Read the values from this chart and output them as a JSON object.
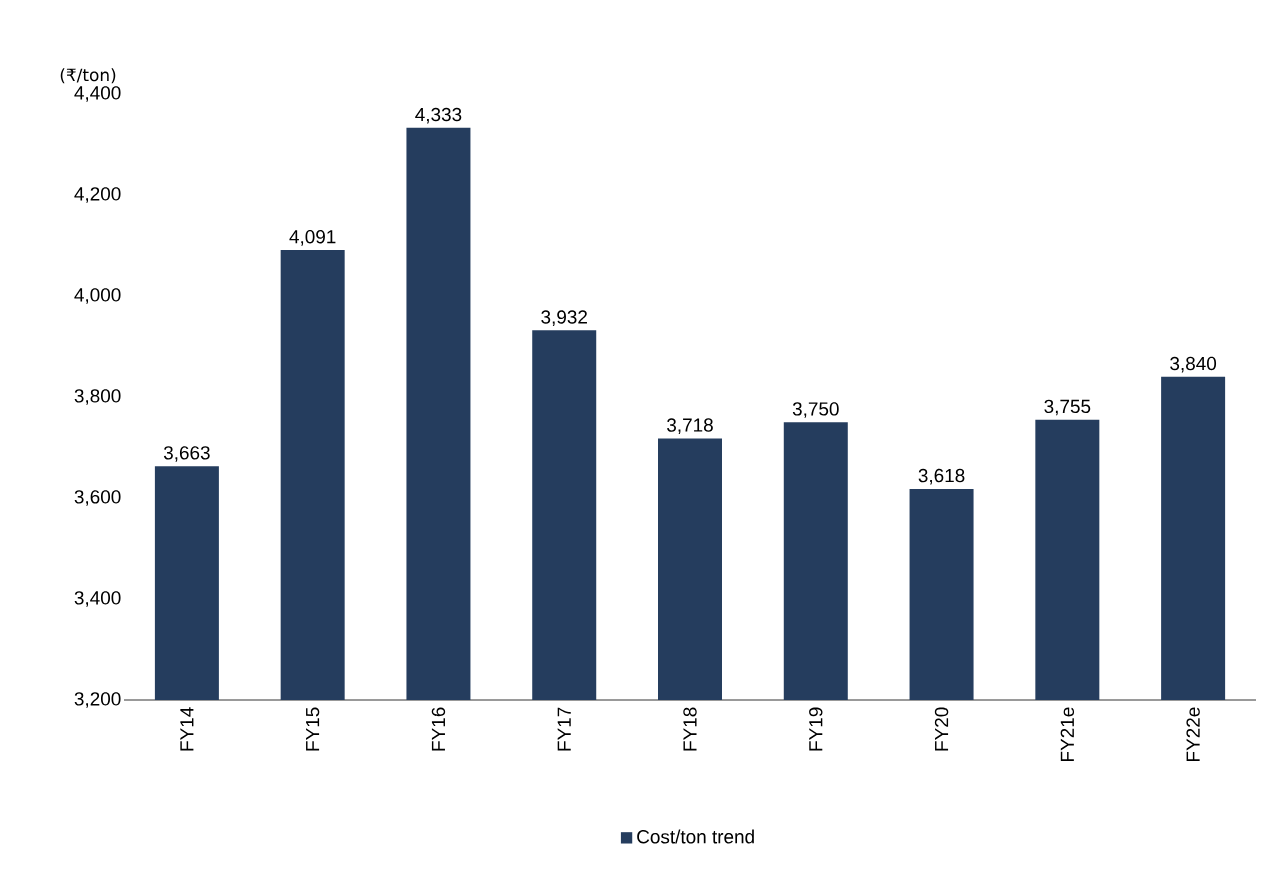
{
  "chart_data": {
    "type": "bar",
    "ylabel": "(₹/ton)",
    "categories": [
      "FY14",
      "FY15",
      "FY16",
      "FY17",
      "FY18",
      "FY19",
      "FY20",
      "FY21e",
      "FY22e"
    ],
    "series": [
      {
        "name": "Cost/ton trend",
        "color": "#253d5e",
        "values": [
          3663,
          4091,
          4333,
          3932,
          3718,
          3750,
          3618,
          3755,
          3840
        ],
        "value_labels": [
          "3,663",
          "4,091",
          "4,333",
          "3,932",
          "3,718",
          "3,750",
          "3,618",
          "3,755",
          "3,840"
        ]
      }
    ],
    "ylim": [
      3200,
      4400
    ],
    "yticks": [
      {
        "value": 3200,
        "label": "3,200"
      },
      {
        "value": 3400,
        "label": "3,400"
      },
      {
        "value": 3600,
        "label": "3,600"
      },
      {
        "value": 3800,
        "label": "3,800"
      },
      {
        "value": 4000,
        "label": "4,000"
      },
      {
        "value": 4200,
        "label": "4,200"
      },
      {
        "value": 4400,
        "label": "4,400"
      }
    ],
    "legend": "bottom",
    "grid": false
  }
}
